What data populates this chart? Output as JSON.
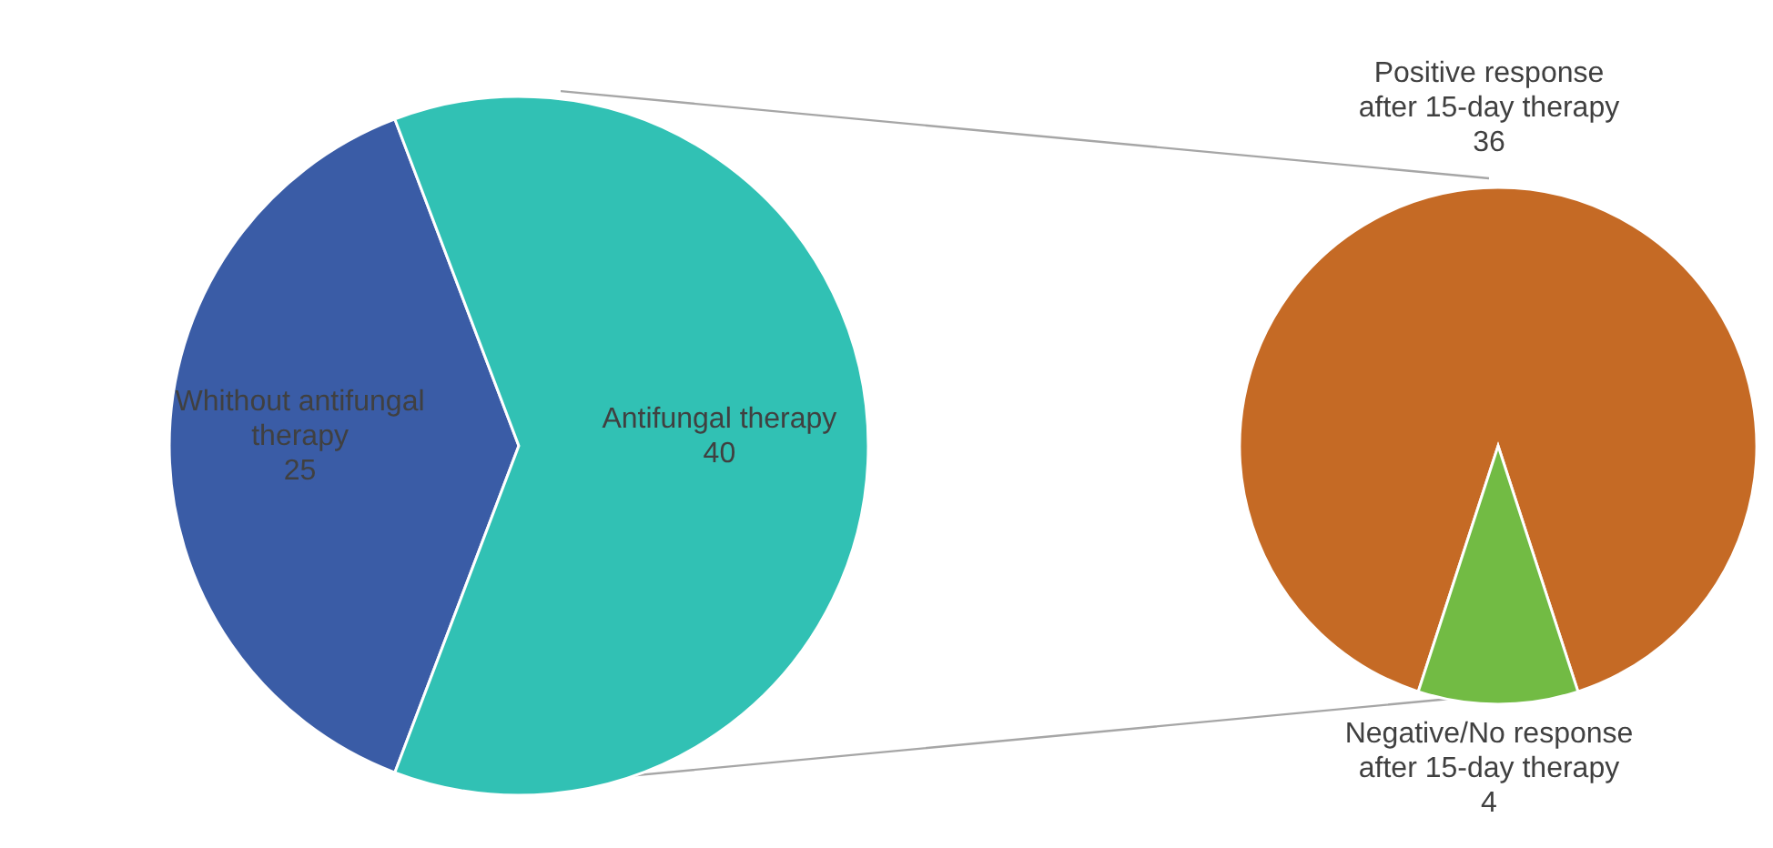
{
  "chart_data": [
    {
      "type": "pie",
      "categories": [
        "Whithout antifungal therapy",
        "Antifungal therapy"
      ],
      "values": [
        25,
        40
      ],
      "colors": [
        "#3a5ca6",
        "#31c1b4"
      ],
      "data_labels": true,
      "legend": false
    },
    {
      "type": "pie",
      "categories": [
        "Positive response after 15-day therapy",
        "Negative/No response after 15-day therapy"
      ],
      "values": [
        36,
        4
      ],
      "colors": [
        "#c56a25",
        "#72bb44"
      ],
      "data_labels": true,
      "legend": false
    }
  ]
}
